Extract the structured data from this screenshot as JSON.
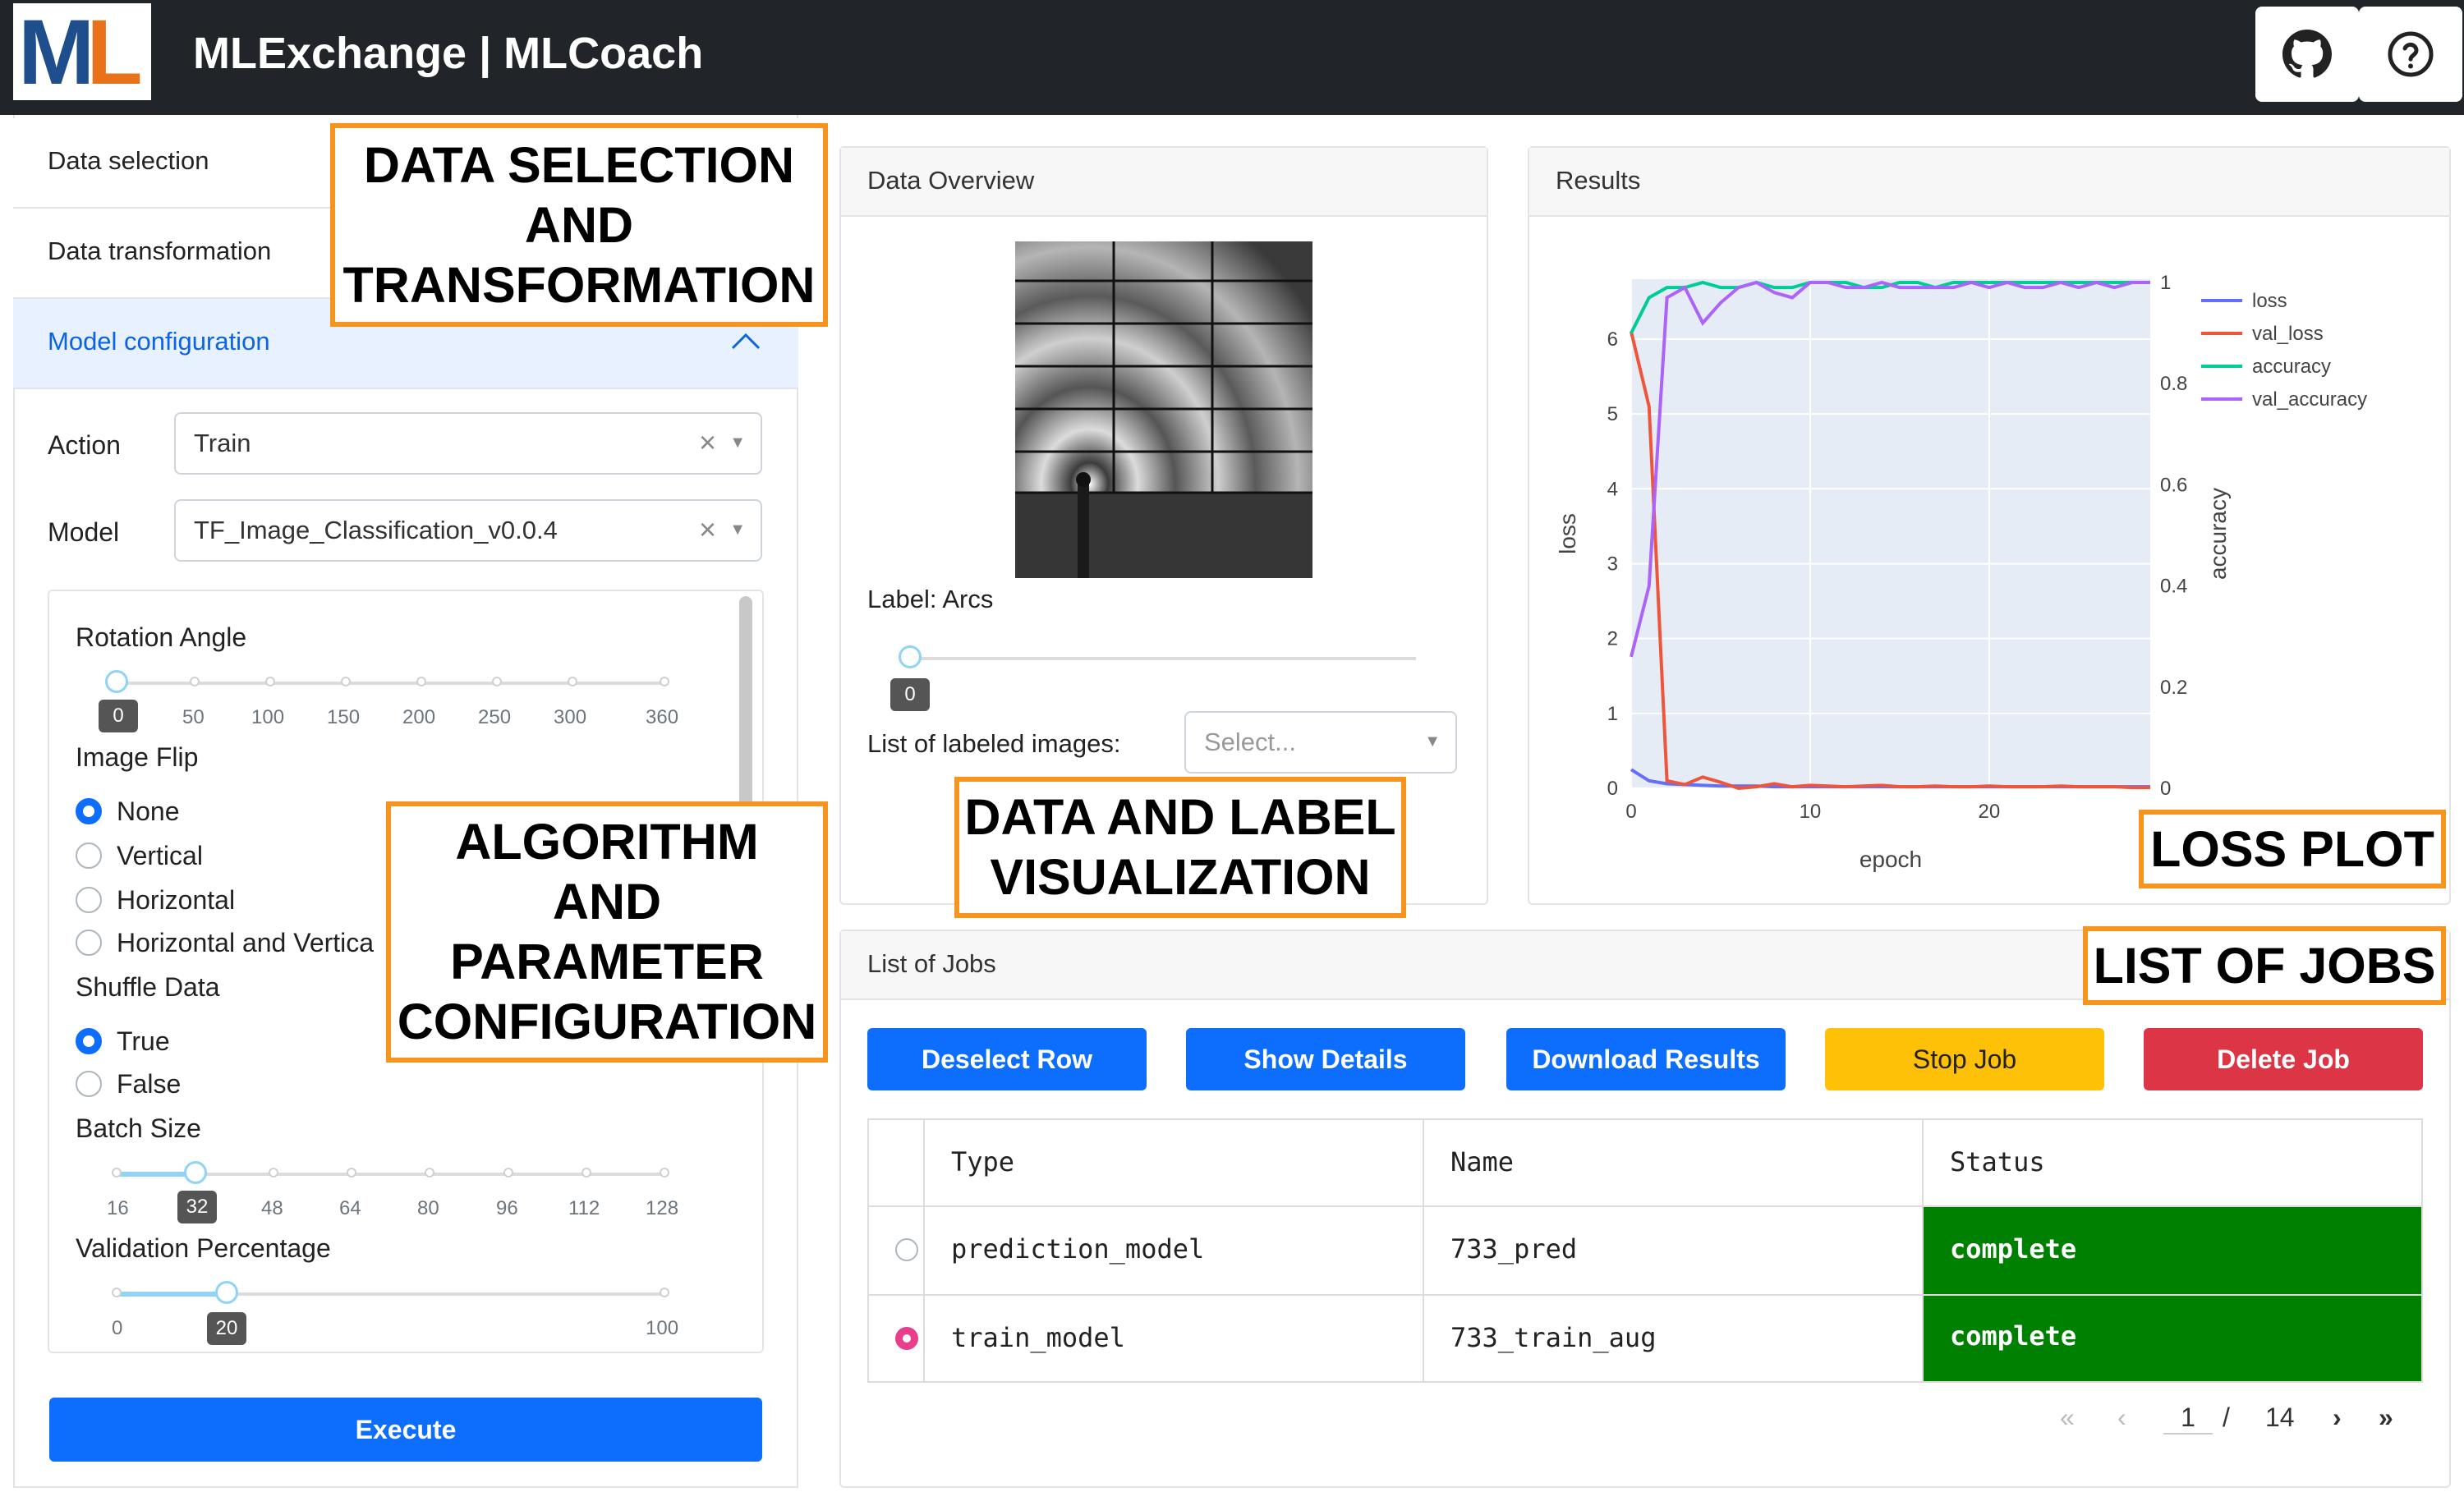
{
  "app": {
    "title": "MLExchange | MLCoach",
    "logo_text": "ML"
  },
  "colors": {
    "navbar": "#212529",
    "primary": "#0d6efd",
    "warning": "#ffc107",
    "danger": "#dc3545",
    "complete": "#008000",
    "annotation": "#f7941d"
  },
  "nav": {
    "icons": [
      "github-icon",
      "help-icon"
    ]
  },
  "accordion": {
    "items": [
      {
        "label": "Data selection"
      },
      {
        "label": "Data transformation"
      },
      {
        "label": "Model configuration"
      }
    ]
  },
  "config": {
    "action_label": "Action",
    "action_value": "Train",
    "model_label": "Model",
    "model_value": "TF_Image_Classification_v0.0.4",
    "rotation": {
      "label": "Rotation Angle",
      "value": "0",
      "ticks": [
        "50",
        "100",
        "150",
        "200",
        "250",
        "300",
        "360"
      ]
    },
    "image_flip": {
      "label": "Image Flip",
      "options": [
        "None",
        "Vertical",
        "Horizontal",
        "Horizontal and Vertica"
      ],
      "selected": "None"
    },
    "shuffle": {
      "label": "Shuffle Data",
      "options": [
        "True",
        "False"
      ],
      "selected": "True"
    },
    "batch": {
      "label": "Batch Size",
      "value": "32",
      "ticks": [
        "16",
        "48",
        "64",
        "80",
        "96",
        "112",
        "128"
      ]
    },
    "validation": {
      "label": "Validation Percentage",
      "value": "20",
      "ticks": [
        "0",
        "100"
      ]
    },
    "execute_label": "Execute"
  },
  "overview": {
    "title": "Data Overview",
    "label_text": "Label: Arcs",
    "slider_value": "0",
    "labeled_images_label": "List of labeled images:",
    "labeled_images_placeholder": "Select..."
  },
  "results": {
    "title": "Results"
  },
  "chart_data": {
    "type": "line",
    "xlabel": "epoch",
    "ylabel": "loss",
    "y2label": "accuracy",
    "xticks": [
      "0",
      "10",
      "20"
    ],
    "yticks": [
      "0",
      "1",
      "2",
      "3",
      "4",
      "5",
      "6"
    ],
    "y2ticks": [
      "0",
      "0.2",
      "0.4",
      "0.6",
      "0.8",
      "1"
    ],
    "xlim": [
      0,
      29
    ],
    "ylim": [
      0,
      6.8
    ],
    "y2lim": [
      0,
      1
    ],
    "legend_position": "top-right",
    "series": [
      {
        "name": "loss",
        "color": "#636efa",
        "axis": "y",
        "x": [
          0,
          1,
          2,
          3,
          4,
          5,
          6,
          7,
          8,
          9,
          10,
          11,
          12,
          13,
          14,
          15,
          16,
          17,
          18,
          19,
          20,
          21,
          22,
          23,
          24,
          25,
          26,
          27,
          28,
          29
        ],
        "values": [
          0.25,
          0.1,
          0.06,
          0.05,
          0.04,
          0.03,
          0.03,
          0.03,
          0.02,
          0.02,
          0.02,
          0.02,
          0.02,
          0.02,
          0.02,
          0.02,
          0.02,
          0.02,
          0.02,
          0.02,
          0.02,
          0.02,
          0.02,
          0.02,
          0.02,
          0.02,
          0.02,
          0.02,
          0.02,
          0.02
        ]
      },
      {
        "name": "val_loss",
        "color": "#ef553b",
        "axis": "y",
        "x": [
          0,
          1,
          2,
          3,
          4,
          5,
          6,
          7,
          8,
          9,
          10,
          11,
          12,
          13,
          14,
          15,
          16,
          17,
          18,
          19,
          20,
          21,
          22,
          23,
          24,
          25,
          26,
          27,
          28,
          29
        ],
        "values": [
          6.1,
          5.1,
          0.1,
          0.05,
          0.15,
          0.08,
          0.0,
          0.02,
          0.06,
          0.02,
          0.04,
          0.03,
          0.02,
          0.03,
          0.04,
          0.02,
          0.02,
          0.03,
          0.02,
          0.02,
          0.03,
          0.02,
          0.02,
          0.02,
          0.03,
          0.02,
          0.02,
          0.02,
          0.01,
          0.01
        ]
      },
      {
        "name": "accuracy",
        "color": "#00cc96",
        "axis": "y2",
        "x": [
          0,
          1,
          2,
          3,
          4,
          5,
          6,
          7,
          8,
          9,
          10,
          11,
          12,
          13,
          14,
          15,
          16,
          17,
          18,
          19,
          20,
          21,
          22,
          23,
          24,
          25,
          26,
          27,
          28,
          29
        ],
        "values": [
          0.9,
          0.97,
          0.99,
          0.99,
          1.0,
          0.99,
          0.99,
          1.0,
          0.99,
          0.99,
          1.0,
          1.0,
          1.0,
          0.99,
          0.99,
          1.0,
          1.0,
          0.99,
          1.0,
          1.0,
          1.0,
          1.0,
          1.0,
          1.0,
          1.0,
          1.0,
          1.0,
          1.0,
          1.0,
          1.0
        ]
      },
      {
        "name": "val_accuracy",
        "color": "#ab63fa",
        "axis": "y2",
        "x": [
          0,
          1,
          2,
          3,
          4,
          5,
          6,
          7,
          8,
          9,
          10,
          11,
          12,
          13,
          14,
          15,
          16,
          17,
          18,
          19,
          20,
          21,
          22,
          23,
          24,
          25,
          26,
          27,
          28,
          29
        ],
        "values": [
          0.26,
          0.4,
          0.97,
          0.99,
          0.92,
          0.96,
          0.99,
          1.0,
          0.98,
          0.97,
          1.0,
          1.0,
          0.99,
          0.99,
          1.0,
          0.99,
          0.99,
          0.99,
          0.99,
          1.0,
          0.99,
          1.0,
          0.99,
          0.99,
          1.0,
          0.99,
          1.0,
          0.99,
          1.0,
          1.0
        ]
      }
    ]
  },
  "jobs": {
    "title": "List of Jobs",
    "buttons": [
      "Deselect Row",
      "Show Details",
      "Download Results",
      "Stop Job",
      "Delete Job"
    ],
    "columns": [
      "Type",
      "Name",
      "Status"
    ],
    "rows": [
      {
        "type": "prediction_model",
        "name": "733_pred",
        "status": "complete",
        "selected": false
      },
      {
        "type": "train_model",
        "name": "733_train_aug",
        "status": "complete",
        "selected": true
      }
    ],
    "pagination": {
      "page": "1",
      "sep": "/",
      "total": "14"
    }
  },
  "annotations": {
    "data_selection": [
      "DATA SELECTION",
      "AND",
      "TRANSFORMATION"
    ],
    "algorithm": [
      "ALGORITHM",
      "AND",
      "PARAMETER",
      "CONFIGURATION"
    ],
    "visualization": [
      "DATA AND LABEL",
      "VISUALIZATION"
    ],
    "loss_plot": "LOSS PLOT",
    "list_of_jobs": "LIST OF JOBS"
  }
}
